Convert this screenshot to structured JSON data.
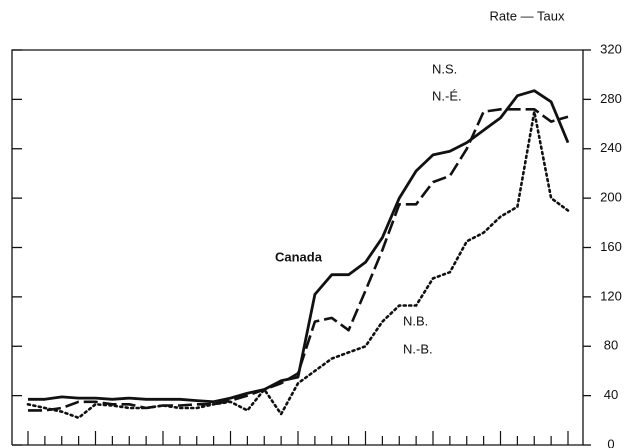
{
  "chart_data": {
    "type": "line",
    "y_axis_label": "Rate — Taux",
    "annotations": [
      "N.-É.",
      "N.-B."
    ],
    "categories": [
      null,
      null,
      null,
      null,
      null,
      null,
      null,
      null,
      null,
      null,
      null,
      null,
      null,
      null,
      null,
      null,
      null,
      null,
      null,
      null,
      null,
      null,
      null,
      null,
      null,
      null,
      null,
      null,
      null,
      null,
      null,
      null,
      null
    ],
    "series": [
      {
        "name": "Canada",
        "color": "#111111",
        "style": "solid",
        "values": [
          37,
          37,
          39,
          38,
          38,
          37,
          38,
          37,
          37,
          37,
          36,
          35,
          38,
          42,
          45,
          52,
          55,
          122,
          138,
          138,
          148,
          168,
          200,
          222,
          235,
          238,
          245,
          255,
          265,
          283,
          287,
          278,
          245
        ]
      },
      {
        "name": "N.S.",
        "color": "#111111",
        "style": "dashed",
        "values": [
          28,
          28,
          30,
          35,
          35,
          33,
          33,
          30,
          32,
          32,
          33,
          33,
          36,
          40,
          45,
          50,
          58,
          100,
          103,
          93,
          125,
          158,
          195,
          195,
          213,
          218,
          240,
          270,
          272,
          272,
          272,
          262,
          266
        ]
      },
      {
        "name": "N.B.",
        "color": "#111111",
        "style": "dotted",
        "values": [
          33,
          30,
          27,
          22,
          33,
          32,
          30,
          30,
          32,
          30,
          30,
          33,
          35,
          28,
          45,
          25,
          50,
          60,
          70,
          75,
          80,
          100,
          113,
          113,
          135,
          140,
          165,
          172,
          185,
          193,
          270,
          200,
          190
        ]
      }
    ],
    "ylim": [
      0,
      320
    ],
    "yticks": [
      0,
      40,
      80,
      120,
      160,
      200,
      240,
      280,
      320
    ]
  }
}
